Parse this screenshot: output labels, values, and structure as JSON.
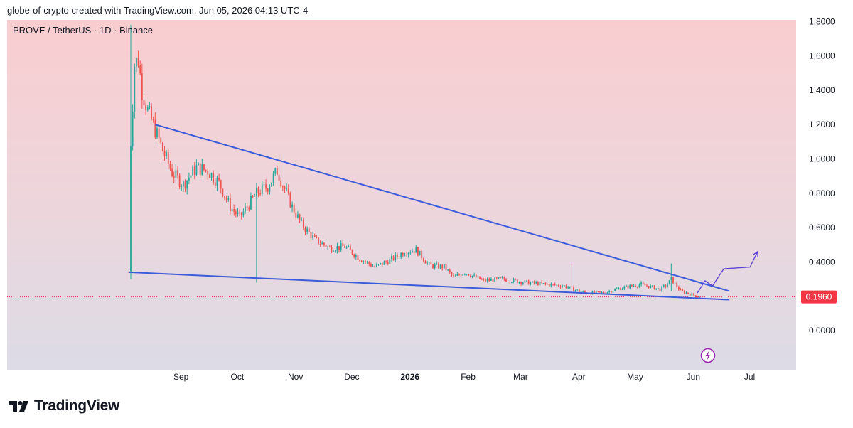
{
  "header": {
    "attribution": "globe-of-crypto created with TradingView.com, Jun 05, 2026 04:13 UTC-4"
  },
  "footer": {
    "brand": "TradingView"
  },
  "colors": {
    "up": "#26a69a",
    "down": "#ef5350",
    "trendline": "#3b5bdb",
    "projection": "#5b3fd6",
    "price_label_bg": "#f23645",
    "bg_top": "#f9cdd0",
    "bg_bottom": "#dcdbe6"
  },
  "icons": [
    "lightning-icon",
    "tradingview-logo-icon"
  ],
  "chart_data": {
    "type": "candlestick",
    "title": "PROVE / TetherUS · 1D · Binance",
    "symbol": "PROVE / TetherUS",
    "interval": "1D",
    "exchange": "Binance",
    "current_price": "0.1960",
    "ylim": [
      -0.05,
      1.8
    ],
    "y_ticks": [
      "1.8000",
      "1.6000",
      "1.4000",
      "1.2000",
      "1.0000",
      "0.8000",
      "0.6000",
      "0.4000",
      "0.2000",
      "0.0000"
    ],
    "x_ticks": [
      "Sep",
      "Oct",
      "Nov",
      "Dec",
      "2026",
      "Feb",
      "Mar",
      "Apr",
      "May",
      "Jun",
      "Jul"
    ],
    "series_anchors": [
      [
        "2025-08-05",
        0.34
      ],
      [
        "2025-08-06",
        1.1
      ],
      [
        "2025-08-08",
        1.55
      ],
      [
        "2025-08-10",
        1.58
      ],
      [
        "2025-08-12",
        1.4
      ],
      [
        "2025-08-15",
        1.28
      ],
      [
        "2025-08-19",
        1.17
      ],
      [
        "2025-08-23",
        1.05
      ],
      [
        "2025-08-28",
        0.92
      ],
      [
        "2025-09-03",
        0.85
      ],
      [
        "2025-09-10",
        0.95
      ],
      [
        "2025-09-16",
        0.93
      ],
      [
        "2025-09-22",
        0.86
      ],
      [
        "2025-09-28",
        0.72
      ],
      [
        "2025-10-03",
        0.66
      ],
      [
        "2025-10-07",
        0.72
      ],
      [
        "2025-10-12",
        0.8
      ],
      [
        "2025-10-18",
        0.84
      ],
      [
        "2025-10-23",
        0.93
      ],
      [
        "2025-10-26",
        0.85
      ],
      [
        "2025-10-31",
        0.72
      ],
      [
        "2025-11-05",
        0.62
      ],
      [
        "2025-11-12",
        0.53
      ],
      [
        "2025-11-20",
        0.48
      ],
      [
        "2025-11-28",
        0.49
      ],
      [
        "2025-12-06",
        0.42
      ],
      [
        "2025-12-14",
        0.37
      ],
      [
        "2025-12-22",
        0.41
      ],
      [
        "2025-12-30",
        0.46
      ],
      [
        "2026-01-05",
        0.47
      ],
      [
        "2026-01-12",
        0.38
      ],
      [
        "2026-01-20",
        0.37
      ],
      [
        "2026-01-25",
        0.31
      ],
      [
        "2026-01-31",
        0.34
      ],
      [
        "2026-02-10",
        0.29
      ],
      [
        "2026-02-20",
        0.3
      ],
      [
        "2026-03-05",
        0.28
      ],
      [
        "2026-03-15",
        0.27
      ],
      [
        "2026-03-25",
        0.26
      ],
      [
        "2026-03-30",
        0.24
      ],
      [
        "2026-04-05",
        0.22
      ],
      [
        "2026-04-15",
        0.22
      ],
      [
        "2026-04-25",
        0.25
      ],
      [
        "2026-05-05",
        0.27
      ],
      [
        "2026-05-15",
        0.24
      ],
      [
        "2026-05-19",
        0.27
      ],
      [
        "2026-05-21",
        0.3
      ],
      [
        "2026-05-26",
        0.23
      ],
      [
        "2026-06-01",
        0.21
      ],
      [
        "2026-06-05",
        0.196
      ]
    ],
    "notable_wicks": [
      [
        "2025-08-06",
        1.78,
        0.3
      ],
      [
        "2025-10-12",
        0.86,
        0.28
      ],
      [
        "2025-10-24",
        1.03,
        0.85
      ],
      [
        "2026-03-29",
        0.39,
        0.24
      ],
      [
        "2026-05-21",
        0.39,
        0.23
      ]
    ],
    "trendlines": [
      {
        "name": "upper",
        "points": [
          [
            "2025-08-19",
            1.2
          ],
          [
            "2026-06-21",
            0.23
          ]
        ]
      },
      {
        "name": "lower",
        "points": [
          [
            "2025-08-05",
            0.34
          ],
          [
            "2026-06-21",
            0.18
          ]
        ]
      }
    ],
    "projection": [
      [
        "2026-06-04",
        0.22
      ],
      [
        "2026-06-08",
        0.29
      ],
      [
        "2026-06-12",
        0.26
      ],
      [
        "2026-06-18",
        0.36
      ],
      [
        "2026-07-02",
        0.37
      ],
      [
        "2026-07-06",
        0.46
      ]
    ]
  }
}
